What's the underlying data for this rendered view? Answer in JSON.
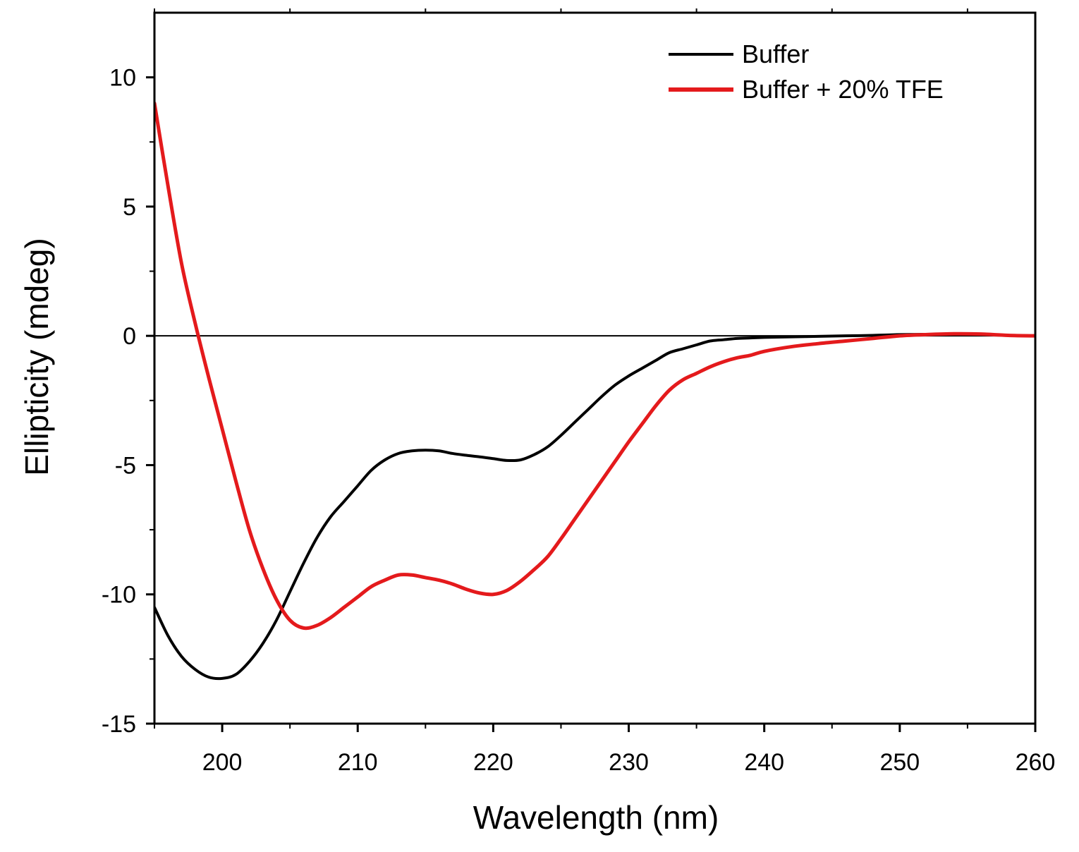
{
  "chart_data": {
    "type": "line",
    "title": "",
    "xlabel": "Wavelength (nm)",
    "ylabel": "Ellipticity (mdeg)",
    "xlim": [
      195,
      260
    ],
    "ylim": [
      -15,
      12.5
    ],
    "xticks": [
      200,
      210,
      220,
      230,
      240,
      250,
      260
    ],
    "xtick_labels": [
      "200",
      "210",
      "220",
      "230",
      "240",
      "250",
      "260"
    ],
    "yticks": [
      -15,
      -10,
      -5,
      0,
      5,
      10
    ],
    "ytick_labels": [
      "-15",
      "-10",
      "-5",
      "0",
      "5",
      "10"
    ],
    "zero_line": true,
    "grid": false,
    "legend_position": "top-right",
    "series": [
      {
        "name": "Buffer",
        "color": "#000000",
        "x": [
          195,
          196,
          197,
          198,
          199,
          200,
          201,
          202,
          203,
          204,
          205,
          206,
          207,
          208,
          209,
          210,
          211,
          212,
          213,
          214,
          215,
          216,
          217,
          218,
          219,
          220,
          221,
          222,
          223,
          224,
          225,
          226,
          227,
          228,
          229,
          230,
          231,
          232,
          233,
          234,
          235,
          236,
          237,
          238,
          239,
          240,
          242,
          244,
          246,
          248,
          250,
          252,
          254,
          256,
          258,
          260
        ],
        "y": [
          -10.5,
          -11.6,
          -12.4,
          -12.9,
          -13.2,
          -13.25,
          -13.1,
          -12.6,
          -11.9,
          -11.0,
          -9.9,
          -8.8,
          -7.8,
          -7.0,
          -6.4,
          -5.8,
          -5.2,
          -4.8,
          -4.55,
          -4.45,
          -4.42,
          -4.45,
          -4.55,
          -4.62,
          -4.68,
          -4.75,
          -4.82,
          -4.8,
          -4.6,
          -4.3,
          -3.85,
          -3.35,
          -2.85,
          -2.35,
          -1.9,
          -1.55,
          -1.25,
          -0.95,
          -0.65,
          -0.5,
          -0.35,
          -0.2,
          -0.15,
          -0.1,
          -0.08,
          -0.06,
          -0.04,
          -0.02,
          0.0,
          0.02,
          0.05,
          0.06,
          0.06,
          0.05,
          0.02,
          0.0
        ]
      },
      {
        "name": "Buffer + 20% TFE",
        "color": "#e41a1c",
        "x": [
          195,
          196,
          197,
          198,
          199,
          200,
          201,
          202,
          203,
          204,
          205,
          206,
          207,
          208,
          209,
          210,
          211,
          212,
          213,
          214,
          215,
          216,
          217,
          218,
          219,
          220,
          221,
          222,
          223,
          224,
          225,
          226,
          227,
          228,
          229,
          230,
          231,
          232,
          233,
          234,
          235,
          236,
          237,
          238,
          239,
          240,
          242,
          244,
          246,
          248,
          250,
          252,
          254,
          256,
          258,
          260
        ],
        "y": [
          9.0,
          5.8,
          2.8,
          0.5,
          -1.6,
          -3.6,
          -5.6,
          -7.5,
          -9.0,
          -10.2,
          -11.0,
          -11.3,
          -11.2,
          -10.9,
          -10.5,
          -10.1,
          -9.7,
          -9.45,
          -9.25,
          -9.25,
          -9.35,
          -9.45,
          -9.6,
          -9.8,
          -9.95,
          -10.0,
          -9.85,
          -9.5,
          -9.05,
          -8.55,
          -7.85,
          -7.1,
          -6.35,
          -5.6,
          -4.85,
          -4.1,
          -3.4,
          -2.7,
          -2.1,
          -1.7,
          -1.45,
          -1.2,
          -1.0,
          -0.85,
          -0.75,
          -0.6,
          -0.42,
          -0.3,
          -0.2,
          -0.1,
          0.0,
          0.05,
          0.08,
          0.07,
          0.02,
          0.0
        ]
      }
    ]
  }
}
